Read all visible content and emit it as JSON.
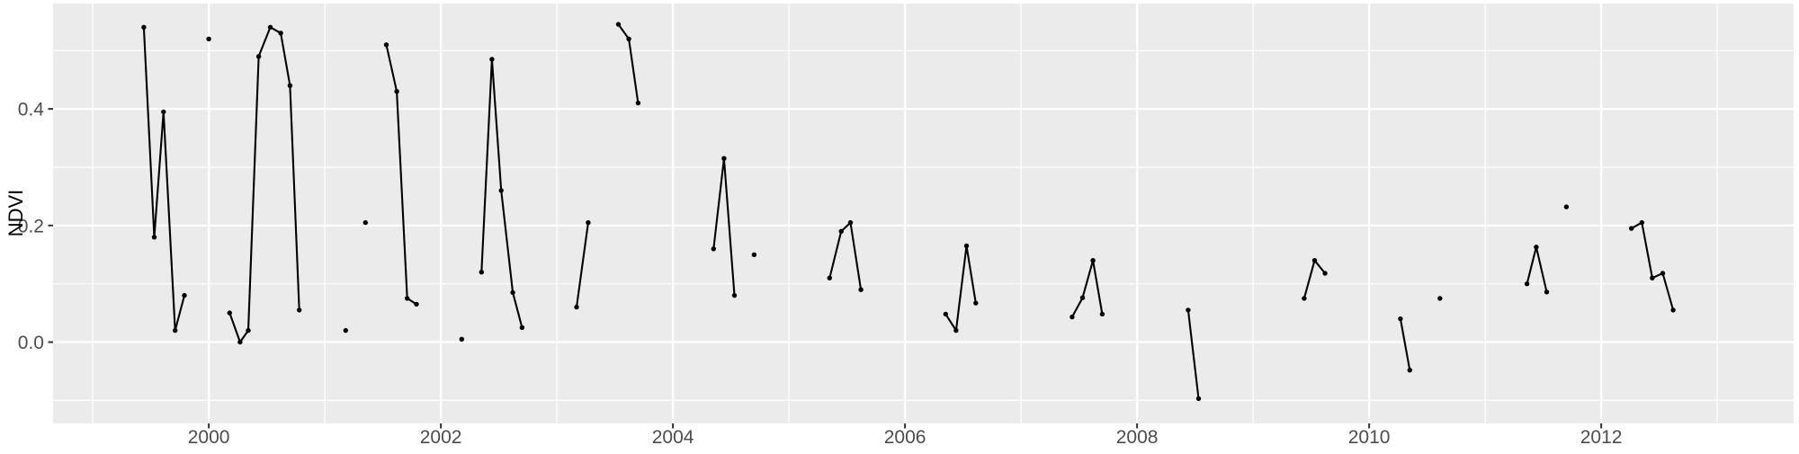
{
  "figure": {
    "ylabel": "NDVI"
  },
  "chart_data": {
    "type": "line",
    "title": "",
    "xlabel": "",
    "ylabel": "NDVI",
    "legend": "none",
    "grid": true,
    "x_domain": [
      1998.658,
      2013.658
    ],
    "y_domain": [
      -0.1395,
      0.5806
    ],
    "x_major_ticks": [
      2000,
      2002,
      2004,
      2006,
      2008,
      2010,
      2012
    ],
    "x_major_labels": [
      "2000",
      "2002",
      "2004",
      "2006",
      "2008",
      "2010",
      "2012"
    ],
    "x_minor_ticks": [
      1999,
      2001,
      2003,
      2005,
      2007,
      2009,
      2011,
      2013
    ],
    "y_major_ticks": [
      0.0,
      0.2,
      0.4
    ],
    "y_major_labels": [
      "0.0",
      "0.2",
      "0.4"
    ],
    "y_minor_ticks": [
      -0.1,
      0.1,
      0.3,
      0.5
    ],
    "colors": {
      "panel_bg": "#EBEBEB",
      "grid": "#FFFFFF",
      "line": "#000000",
      "point": "#000000",
      "tick_mark": "#333333",
      "tick_label": "#4D4D4D",
      "axis_title": "#000000"
    },
    "series": [
      {
        "name": "seg-1999",
        "points": [
          [
            1999.44,
            0.54
          ],
          [
            1999.53,
            0.18
          ],
          [
            1999.61,
            0.395
          ],
          [
            1999.71,
            0.02
          ],
          [
            1999.79,
            0.08
          ]
        ]
      },
      {
        "name": "pt-2000a",
        "points": [
          [
            2000.0,
            0.52
          ]
        ]
      },
      {
        "name": "seg-2000",
        "points": [
          [
            2000.18,
            0.05
          ],
          [
            2000.27,
            0.0
          ],
          [
            2000.34,
            0.02
          ],
          [
            2000.43,
            0.49
          ],
          [
            2000.53,
            0.54
          ],
          [
            2000.62,
            0.53
          ],
          [
            2000.7,
            0.44
          ],
          [
            2000.78,
            0.055
          ]
        ]
      },
      {
        "name": "pt-2001a",
        "points": [
          [
            2001.18,
            0.02
          ]
        ]
      },
      {
        "name": "pt-2001b",
        "points": [
          [
            2001.35,
            0.205
          ]
        ]
      },
      {
        "name": "seg-2001",
        "points": [
          [
            2001.53,
            0.51
          ],
          [
            2001.62,
            0.43
          ],
          [
            2001.71,
            0.075
          ],
          [
            2001.79,
            0.065
          ]
        ]
      },
      {
        "name": "pt-2002a",
        "points": [
          [
            2002.18,
            0.005
          ]
        ]
      },
      {
        "name": "seg-2002",
        "points": [
          [
            2002.35,
            0.12
          ],
          [
            2002.44,
            0.485
          ],
          [
            2002.52,
            0.26
          ],
          [
            2002.62,
            0.085
          ],
          [
            2002.7,
            0.025
          ]
        ]
      },
      {
        "name": "seg-2003a",
        "points": [
          [
            2003.17,
            0.06
          ],
          [
            2003.27,
            0.205
          ]
        ]
      },
      {
        "name": "seg-2003b",
        "points": [
          [
            2003.53,
            0.545
          ],
          [
            2003.62,
            0.52
          ],
          [
            2003.7,
            0.41
          ]
        ]
      },
      {
        "name": "seg-2004",
        "points": [
          [
            2004.35,
            0.16
          ],
          [
            2004.44,
            0.315
          ],
          [
            2004.53,
            0.08
          ]
        ]
      },
      {
        "name": "pt-2004a",
        "points": [
          [
            2004.7,
            0.15
          ]
        ]
      },
      {
        "name": "seg-2005",
        "points": [
          [
            2005.35,
            0.11
          ],
          [
            2005.45,
            0.19
          ],
          [
            2005.53,
            0.205
          ],
          [
            2005.62,
            0.09
          ]
        ]
      },
      {
        "name": "seg-2006",
        "points": [
          [
            2006.35,
            0.048
          ],
          [
            2006.44,
            0.02
          ],
          [
            2006.53,
            0.165
          ],
          [
            2006.61,
            0.067
          ]
        ]
      },
      {
        "name": "seg-2007",
        "points": [
          [
            2007.44,
            0.043
          ],
          [
            2007.53,
            0.076
          ],
          [
            2007.62,
            0.14
          ],
          [
            2007.7,
            0.048
          ]
        ]
      },
      {
        "name": "seg-2008",
        "points": [
          [
            2008.44,
            0.055
          ],
          [
            2008.53,
            -0.097
          ]
        ]
      },
      {
        "name": "seg-2009",
        "points": [
          [
            2009.44,
            0.075
          ],
          [
            2009.53,
            0.14
          ],
          [
            2009.62,
            0.118
          ]
        ]
      },
      {
        "name": "seg-2010",
        "points": [
          [
            2010.27,
            0.04
          ],
          [
            2010.35,
            -0.048
          ]
        ]
      },
      {
        "name": "pt-2010a",
        "points": [
          [
            2010.61,
            0.075
          ]
        ]
      },
      {
        "name": "seg-2011",
        "points": [
          [
            2011.36,
            0.1
          ],
          [
            2011.44,
            0.163
          ],
          [
            2011.53,
            0.086
          ]
        ]
      },
      {
        "name": "pt-2011a",
        "points": [
          [
            2011.7,
            0.232
          ]
        ]
      },
      {
        "name": "seg-2012",
        "points": [
          [
            2012.26,
            0.195
          ],
          [
            2012.35,
            0.205
          ],
          [
            2012.44,
            0.11
          ],
          [
            2012.53,
            0.118
          ],
          [
            2012.62,
            0.055
          ]
        ]
      }
    ]
  }
}
